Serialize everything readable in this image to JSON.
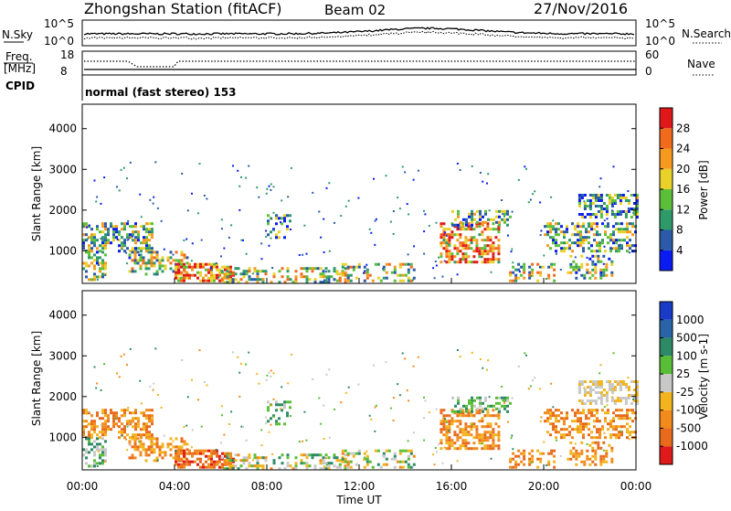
{
  "header": {
    "station": "Zhongshan Station (fitACF)",
    "beam": "Beam 02",
    "date": "27/Nov/2016"
  },
  "top_panels": {
    "nsky": {
      "left_label": "N.Sky",
      "ticks_left": [
        "10^5",
        "10^0"
      ],
      "ticks_right": [
        "10^5",
        "10^0"
      ],
      "right_label": "N.Search"
    },
    "freq": {
      "left_label_line1": "Freq.",
      "left_label_line2": "[MHz]",
      "ticks_left": [
        "18",
        "8"
      ],
      "ticks_right": [
        "60",
        "0"
      ],
      "right_label": "Nave"
    },
    "cpid": {
      "left_label": "CPID",
      "text": "normal (fast stereo) 153"
    }
  },
  "colors": {
    "power_scale": [
      "#0a1cf2",
      "#2b5aa8",
      "#2e9a6a",
      "#5bbf3a",
      "#e8d22a",
      "#f59a1e",
      "#f26a1c",
      "#e0181a"
    ],
    "velocity_scale": [
      "#1a3ac8",
      "#2a64a8",
      "#2e8a66",
      "#58be36",
      "#c8c8c8",
      "#f2b41c",
      "#f28a1c",
      "#e86a1c",
      "#e01a1a"
    ]
  },
  "chart_data": [
    {
      "type": "heatmap",
      "name": "power",
      "ylabel": "Slant Range [km]",
      "yticks": [
        "1000",
        "2000",
        "3000",
        "4000"
      ],
      "ylim": [
        200,
        4600
      ],
      "colorbar_label": "Power [dB]",
      "colorbar_ticks": [
        "4",
        "8",
        "12",
        "16",
        "20",
        "24",
        "28"
      ],
      "colorbar_range": [
        0,
        32
      ]
    },
    {
      "type": "heatmap",
      "name": "velocity",
      "ylabel": "Slant Range [km]",
      "yticks": [
        "1000",
        "2000",
        "3000",
        "4000"
      ],
      "ylim": [
        200,
        4600
      ],
      "colorbar_label": "Velocity [m s-1]",
      "colorbar_ticks": [
        "1000",
        "500",
        "100",
        "25",
        "-25",
        "-100",
        "-500",
        "-1000"
      ],
      "xlabel": "Time UT",
      "xticks": [
        "00:00",
        "04:00",
        "08:00",
        "12:00",
        "16:00",
        "20:00",
        "00:00"
      ],
      "xlim_hours": [
        0,
        24
      ]
    }
  ]
}
